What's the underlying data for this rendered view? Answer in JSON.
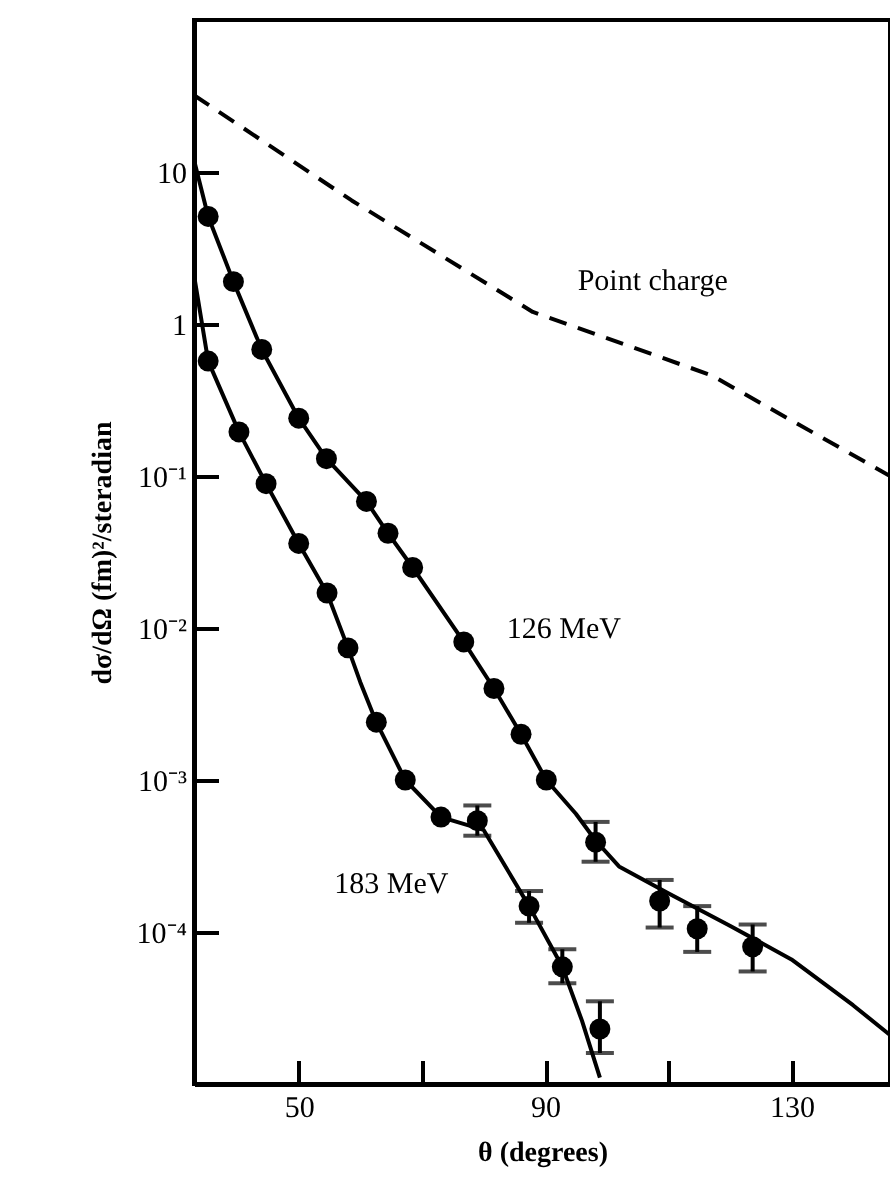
{
  "chart_data": {
    "type": "line",
    "xlabel": "θ (degrees)",
    "ylabel": "dσ/dΩ (fm)²/steradian",
    "log": true,
    "grid": false,
    "xlim": [
      33,
      146
    ],
    "ylim": [
      1e-05,
      100
    ],
    "xticks": [
      50,
      {
        "value": 70,
        "label": null
      },
      90,
      {
        "value": 110,
        "label": null
      },
      130
    ],
    "yticks": [
      {
        "value": 0.0001,
        "label": "10⁻⁴"
      },
      {
        "value": 0.001,
        "label": "10⁻³"
      },
      {
        "value": 0.01,
        "label": "10⁻²"
      },
      {
        "value": 0.1,
        "label": "10⁻¹"
      },
      1,
      10
    ],
    "series": [
      {
        "name": "Point charge",
        "type": "line",
        "line_style": "dashed",
        "color": "#000000",
        "x": [
          33,
          58.6,
          88,
          117,
          146
        ],
        "values": [
          32,
          6.5,
          1.2,
          0.46,
          0.1
        ]
      },
      {
        "name": "126 MeV",
        "type": "scatter",
        "marker": "circle",
        "color": "#000000",
        "x": [
          35.3,
          39.4,
          44,
          50,
          54.5,
          61,
          64.5,
          68.5,
          76.8,
          81.7,
          86.1,
          90.2,
          98.2,
          108.6,
          114.7,
          123.7
        ],
        "values": [
          5.1,
          1.9,
          0.68,
          0.24,
          0.13,
          0.068,
          0.042,
          0.025,
          0.0081,
          0.004,
          0.002,
          0.001,
          0.00039,
          0.00016,
          0.000105,
          8e-05
        ],
        "errors": [
          null,
          null,
          null,
          null,
          null,
          null,
          null,
          null,
          null,
          null,
          null,
          null,
          [
            0.00029,
            0.00053
          ],
          [
            0.000107,
            0.00022
          ],
          [
            7.4e-05,
            0.000148
          ],
          [
            5.5e-05,
            0.000112
          ]
        ]
      },
      {
        "type": "line",
        "line_style": "solid",
        "color": "#000000",
        "x": [
          33,
          35.3,
          39.4,
          44,
          50,
          54.5,
          61,
          64.5,
          68.5,
          76.8,
          81.7,
          86.1,
          90.2,
          95,
          98.2,
          102,
          110,
          120,
          130,
          140,
          146
        ],
        "values": [
          12,
          5.1,
          1.9,
          0.68,
          0.24,
          0.13,
          0.068,
          0.042,
          0.025,
          0.0081,
          0.004,
          0.002,
          0.001,
          0.0006,
          0.0004,
          0.00027,
          0.00018,
          0.00011,
          6.6e-05,
          3.3e-05,
          2.1e-05
        ]
      },
      {
        "name": "183 MeV",
        "type": "scatter",
        "marker": "circle",
        "color": "#000000",
        "x": [
          35.3,
          40.3,
          44.7,
          50,
          54.6,
          58,
          62.6,
          67.3,
          73.1,
          79,
          87.4,
          92.8,
          98.9
        ],
        "values": [
          0.57,
          0.195,
          0.089,
          0.036,
          0.017,
          0.0074,
          0.0024,
          0.001,
          0.00057,
          0.00054,
          0.000148,
          5.9e-05,
          2.3e-05
        ],
        "errors": [
          null,
          null,
          null,
          null,
          null,
          null,
          null,
          null,
          null,
          [
            0.00043,
            0.00068
          ],
          [
            0.000115,
            0.000186
          ],
          [
            4.6e-05,
            7.7e-05
          ],
          [
            1.6e-05,
            3.5e-05
          ]
        ]
      },
      {
        "type": "line",
        "line_style": "solid",
        "color": "#000000",
        "x": [
          33,
          35.3,
          40.3,
          44.7,
          50,
          54.6,
          58,
          60,
          62.6,
          67.3,
          73.1,
          80,
          87.4,
          92.8,
          96,
          98.9
        ],
        "values": [
          2.1,
          0.57,
          0.195,
          0.089,
          0.036,
          0.017,
          0.0074,
          0.0044,
          0.0024,
          0.001,
          0.00057,
          0.00047,
          0.000148,
          5.9e-05,
          2.6e-05,
          1.1e-05
        ]
      }
    ]
  }
}
